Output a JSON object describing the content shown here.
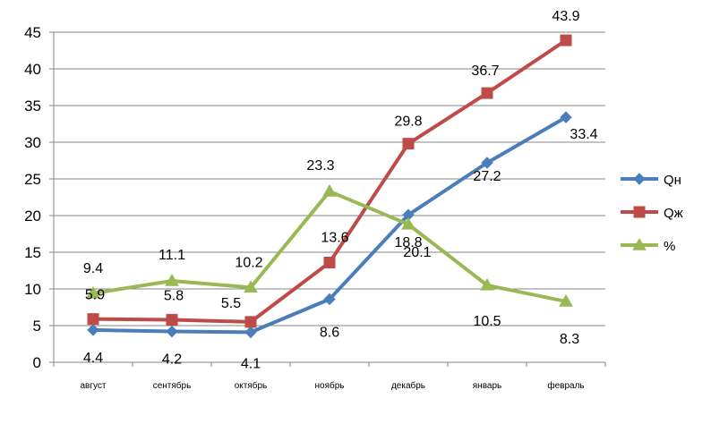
{
  "chart_data": {
    "type": "line",
    "title": "",
    "xlabel": "",
    "ylabel": "",
    "categories": [
      "август",
      "сентябрь",
      "октябрь",
      "ноябрь",
      "декабрь",
      "январь",
      "февраль"
    ],
    "ylim": [
      0,
      45
    ],
    "yticks": [
      0,
      5,
      10,
      15,
      20,
      25,
      30,
      35,
      40,
      45
    ],
    "grid": "horizontal",
    "legend": "right",
    "data_labels": true,
    "series": [
      {
        "name": "Qн",
        "color": "#4A7EBB",
        "marker": "diamond",
        "values": [
          4.4,
          4.2,
          4.1,
          8.6,
          20.1,
          27.2,
          33.4
        ],
        "labels": [
          "4.4",
          "4.2",
          "4.1",
          "8.6",
          "20.1",
          "27.2",
          "33.4"
        ]
      },
      {
        "name": "Qж",
        "color": "#BE4B48",
        "marker": "square",
        "values": [
          5.9,
          5.8,
          5.5,
          13.6,
          29.8,
          36.7,
          43.9
        ],
        "labels": [
          "5.9",
          "5.8",
          "5.5",
          "13.6",
          "29.8",
          "36.7",
          "43.9"
        ]
      },
      {
        "name": "%",
        "color": "#98B954",
        "marker": "triangle",
        "values": [
          9.4,
          11.1,
          10.2,
          23.3,
          18.8,
          10.5,
          8.3
        ],
        "labels": [
          "9.4",
          "11.1",
          "10.2",
          "23.3",
          "18.8",
          "10.5",
          "8.3"
        ]
      }
    ]
  }
}
